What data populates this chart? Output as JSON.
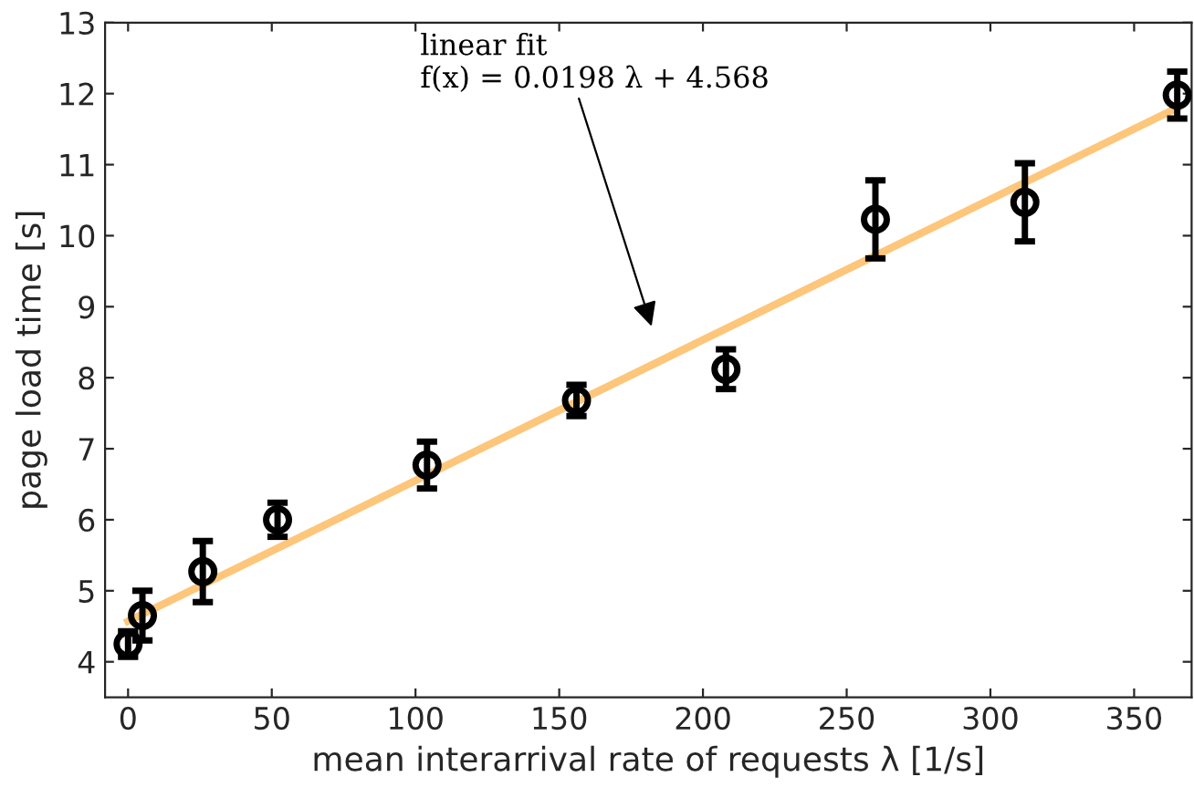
{
  "chart_data": {
    "type": "scatter",
    "xlabel": "mean interarrival rate of requests λ [1/s]",
    "ylabel": "page load time [s]",
    "annotations": [
      "linear fit\nf(x) = 0.0198 λ + 4.568"
    ],
    "series": [
      {
        "color": "#000000",
        "marker": "circle",
        "x": [
          0,
          5,
          26,
          52,
          104,
          156,
          208,
          260,
          312,
          365
        ],
        "values": [
          4.25,
          4.65,
          5.27,
          6.0,
          6.77,
          7.68,
          8.12,
          10.23,
          10.47,
          11.98
        ],
        "errors": [
          0.18,
          0.35,
          0.43,
          0.24,
          0.33,
          0.22,
          0.28,
          0.55,
          0.55,
          0.33
        ]
      },
      {
        "type": "line",
        "color": "#fdc67a",
        "marker": "none",
        "line_style": "solid",
        "x": [
          0,
          365
        ],
        "values": [
          4.57,
          11.8
        ]
      }
    ],
    "xlim": [
      -8,
      370
    ],
    "ylim": [
      3.5,
      13
    ],
    "xticks": [
      0,
      50,
      100,
      150,
      200,
      250,
      300,
      350
    ],
    "yticks": [
      4,
      5,
      6,
      7,
      8,
      9,
      10,
      11,
      12,
      13
    ],
    "grid": false
  }
}
